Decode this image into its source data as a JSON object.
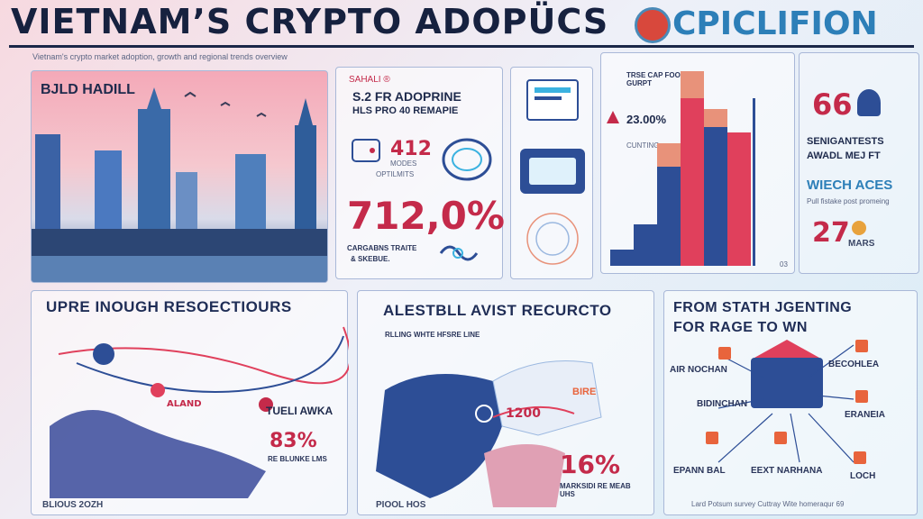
{
  "header": {
    "title": "VIETNAM’S CRYPTO ADOPÜCS",
    "logo_text": "CPICLIFION",
    "subtitle": "Vietnam's crypto market adoption, growth and regional trends overview"
  },
  "city_panel": {
    "label": "BJLD HADILL"
  },
  "adoption_panel": {
    "top_label": "SAHALI ®",
    "line1": "S.2 FR ADOPRINE",
    "line2": "HLS PRO 40 REMAPIE",
    "stat": "412",
    "stat_caption1": "MODES",
    "stat_caption2": "OPTILMITS",
    "big_percent": "712,0%",
    "caption1": "CARGABNS TRAITE",
    "caption2": "& SKEBUE."
  },
  "bar_panel": {
    "note1": "TRSE CAP FOOBOIL GURPT",
    "percent": "23.00%",
    "note2": "CUNTING",
    "chart_colors": [
      "#2d4e96",
      "#e0405c",
      "#e8927a",
      "#3bb2e0"
    ],
    "axis_label": "03"
  },
  "right_stats": {
    "top_number": "66",
    "label1": "SENIGANTESTS",
    "label2": "AWADL MEJ FT",
    "label3": "WIECH ACES",
    "note": "Pull fistake post promeing",
    "bottom_number": "27",
    "bottom_unit": "MARS"
  },
  "map_panel_left": {
    "heading": "UPRE INOUGH RESOECTIOURS",
    "label1": "ALAND",
    "label2": "TUELI AWKA",
    "percent": "83%",
    "caption": "RE BLUNKE LMS",
    "footer": "BLIOUS 2OZH"
  },
  "map_panel_center": {
    "heading": "ALESTBLL AVIST RECURCTO",
    "subheading": "RLLING WHTE HFSRE LINE",
    "label": "BIRE",
    "number": "1200",
    "percent": "16%",
    "caption": "MARKSIDI RE MEAB UHS",
    "footer": "PIOOL HOS"
  },
  "flow_panel": {
    "heading1": "FROM STATH JGENTING",
    "heading2": "FOR RAGE TO WN",
    "nodes": [
      "AIR NOCHAN",
      "BECOHLEA",
      "BIDINCHAN",
      "ERANEIA",
      "EPANN BAL",
      "EEXT NARHANA",
      "LOCH"
    ],
    "footer": "Lard Potsum survey Cuttray Wite homeraqur 69"
  }
}
